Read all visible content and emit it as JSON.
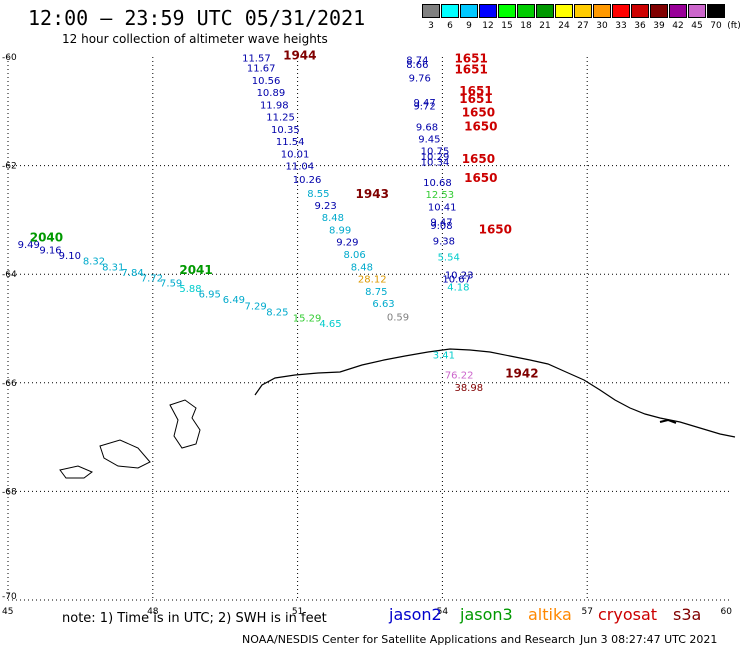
{
  "header": {
    "title": "12:00 – 23:59 UTC 05/31/2021",
    "subtitle": "12 hour collection of altimeter wave heights"
  },
  "legend": {
    "unit": "(ft)",
    "items": [
      {
        "label": "3",
        "color": "#808080"
      },
      {
        "label": "6",
        "color": "#00ffff"
      },
      {
        "label": "9",
        "color": "#00c8ff"
      },
      {
        "label": "12",
        "color": "#0000ff"
      },
      {
        "label": "15",
        "color": "#00ff00"
      },
      {
        "label": "18",
        "color": "#00cc00"
      },
      {
        "label": "21",
        "color": "#009900"
      },
      {
        "label": "24",
        "color": "#ffff00"
      },
      {
        "label": "27",
        "color": "#ffcc00"
      },
      {
        "label": "30",
        "color": "#ff9900"
      },
      {
        "label": "33",
        "color": "#ff0000"
      },
      {
        "label": "36",
        "color": "#cc0000"
      },
      {
        "label": "39",
        "color": "#800000"
      },
      {
        "label": "42",
        "color": "#990099"
      },
      {
        "label": "45",
        "color": "#cc66cc"
      },
      {
        "label": "70",
        "color": "#000000"
      }
    ]
  },
  "axes": {
    "lon_ticks": [
      "45",
      "48",
      "51",
      "54",
      "57",
      "60"
    ],
    "lat_ticks": [
      "-60",
      "-62",
      "-64",
      "-66",
      "-68",
      "-70"
    ]
  },
  "footer": {
    "note": "note:  1) Time is in UTC;  2) SWH is in feet",
    "satellites": [
      {
        "name": "jason2",
        "color": "#0000cc"
      },
      {
        "name": "jason3",
        "color": "#009900"
      },
      {
        "name": "altika",
        "color": "#ff8800"
      },
      {
        "name": "cryosat",
        "color": "#cc0000"
      },
      {
        "name": "s3a",
        "color": "#800000"
      }
    ],
    "credit": "NOAA/NESDIS Center for Satellite Applications and Research",
    "timestamp": "Jun  3 08:27:47 UTC 2021"
  },
  "track_labels": [
    {
      "text": "1944",
      "lon": 50.7,
      "lat": -60.05,
      "color": "#800000"
    },
    {
      "text": "1943",
      "lon": 52.2,
      "lat": -62.6,
      "color": "#800000"
    },
    {
      "text": "1942",
      "lon": 55.3,
      "lat": -65.9,
      "color": "#800000"
    },
    {
      "text": "2040",
      "lon": 45.45,
      "lat": -63.4,
      "color": "#009900"
    },
    {
      "text": "2041",
      "lon": 48.55,
      "lat": -64.0,
      "color": "#009900"
    },
    {
      "text": "1651",
      "lon": 54.25,
      "lat": -60.1,
      "color": "#cc0000"
    },
    {
      "text": "1651",
      "lon": 54.25,
      "lat": -60.3,
      "color": "#cc0000"
    },
    {
      "text": "1651",
      "lon": 54.35,
      "lat": -60.7,
      "color": "#cc0000"
    },
    {
      "text": "1651",
      "lon": 54.35,
      "lat": -60.85,
      "color": "#cc0000"
    },
    {
      "text": "1650",
      "lon": 54.4,
      "lat": -61.1,
      "color": "#cc0000"
    },
    {
      "text": "1650",
      "lon": 54.45,
      "lat": -61.35,
      "color": "#cc0000"
    },
    {
      "text": "1650",
      "lon": 54.4,
      "lat": -61.95,
      "color": "#cc0000"
    },
    {
      "text": "1650",
      "lon": 54.45,
      "lat": -62.3,
      "color": "#cc0000"
    },
    {
      "text": "1650",
      "lon": 54.75,
      "lat": -63.25,
      "color": "#cc0000"
    }
  ],
  "swh_points": [
    {
      "value": "11.57",
      "lon": 49.85,
      "lat": -60.08,
      "color": "#0000aa"
    },
    {
      "value": "11.67",
      "lon": 49.95,
      "lat": -60.27,
      "color": "#0000aa"
    },
    {
      "value": "10.56",
      "lon": 50.05,
      "lat": -60.5,
      "color": "#0000aa"
    },
    {
      "value": "10.89",
      "lon": 50.15,
      "lat": -60.72,
      "color": "#0000aa"
    },
    {
      "value": "11.98",
      "lon": 50.22,
      "lat": -60.95,
      "color": "#0000aa"
    },
    {
      "value": "11.25",
      "lon": 50.35,
      "lat": -61.17,
      "color": "#0000aa"
    },
    {
      "value": "10.35",
      "lon": 50.45,
      "lat": -61.4,
      "color": "#0000aa"
    },
    {
      "value": "11.54",
      "lon": 50.55,
      "lat": -61.62,
      "color": "#0000aa"
    },
    {
      "value": "10.01",
      "lon": 50.65,
      "lat": -61.85,
      "color": "#0000aa"
    },
    {
      "value": "11.04",
      "lon": 50.75,
      "lat": -62.07,
      "color": "#0000aa"
    },
    {
      "value": "10.26",
      "lon": 50.9,
      "lat": -62.32,
      "color": "#0000aa"
    },
    {
      "value": "8.55",
      "lon": 51.2,
      "lat": -62.58,
      "color": "#00aacc"
    },
    {
      "value": "9.23",
      "lon": 51.35,
      "lat": -62.8,
      "color": "#0000aa"
    },
    {
      "value": "8.48",
      "lon": 51.5,
      "lat": -63.02,
      "color": "#00aacc"
    },
    {
      "value": "8.99",
      "lon": 51.65,
      "lat": -63.25,
      "color": "#00aacc"
    },
    {
      "value": "9.29",
      "lon": 51.8,
      "lat": -63.47,
      "color": "#0000aa"
    },
    {
      "value": "8.06",
      "lon": 51.95,
      "lat": -63.7,
      "color": "#00aacc"
    },
    {
      "value": "8.48",
      "lon": 52.1,
      "lat": -63.93,
      "color": "#00aacc"
    },
    {
      "value": "28.12",
      "lon": 52.25,
      "lat": -64.15,
      "color": "#dd9900"
    },
    {
      "value": "8.75",
      "lon": 52.4,
      "lat": -64.38,
      "color": "#00aacc"
    },
    {
      "value": "6.63",
      "lon": 52.55,
      "lat": -64.6,
      "color": "#00aacc"
    },
    {
      "value": "0.59",
      "lon": 52.85,
      "lat": -64.85,
      "color": "#808080"
    },
    {
      "value": "8.74",
      "lon": 53.25,
      "lat": -60.12,
      "color": "#0000aa"
    },
    {
      "value": "8.66",
      "lon": 53.25,
      "lat": -60.2,
      "color": "#0000aa"
    },
    {
      "value": "9.76",
      "lon": 53.3,
      "lat": -60.45,
      "color": "#0000aa"
    },
    {
      "value": "9.47",
      "lon": 53.4,
      "lat": -60.9,
      "color": "#0000aa"
    },
    {
      "value": "9.72",
      "lon": 53.4,
      "lat": -60.97,
      "color": "#0000aa"
    },
    {
      "value": "9.68",
      "lon": 53.45,
      "lat": -61.35,
      "color": "#0000aa"
    },
    {
      "value": "9.45",
      "lon": 53.5,
      "lat": -61.57,
      "color": "#0000aa"
    },
    {
      "value": "10.75",
      "lon": 53.55,
      "lat": -61.8,
      "color": "#0000aa"
    },
    {
      "value": "10.29",
      "lon": 53.55,
      "lat": -61.9,
      "color": "#0000aa"
    },
    {
      "value": "10.34",
      "lon": 53.55,
      "lat": -62.0,
      "color": "#0000aa"
    },
    {
      "value": "10.68",
      "lon": 53.6,
      "lat": -62.38,
      "color": "#0000aa"
    },
    {
      "value": "12.53",
      "lon": 53.65,
      "lat": -62.6,
      "color": "#33cc33"
    },
    {
      "value": "10.41",
      "lon": 53.7,
      "lat": -62.83,
      "color": "#0000aa"
    },
    {
      "value": "9.47",
      "lon": 53.75,
      "lat": -63.1,
      "color": "#0000aa"
    },
    {
      "value": "9.08",
      "lon": 53.75,
      "lat": -63.17,
      "color": "#0000aa"
    },
    {
      "value": "9.38",
      "lon": 53.8,
      "lat": -63.45,
      "color": "#0000aa"
    },
    {
      "value": "5.54",
      "lon": 53.9,
      "lat": -63.75,
      "color": "#00cccc"
    },
    {
      "value": "10.23",
      "lon": 54.05,
      "lat": -64.08,
      "color": "#0000aa"
    },
    {
      "value": "10.67",
      "lon": 54.0,
      "lat": -64.15,
      "color": "#0000aa"
    },
    {
      "value": "4.18",
      "lon": 54.1,
      "lat": -64.3,
      "color": "#00cccc"
    },
    {
      "value": "3.41",
      "lon": 53.8,
      "lat": -65.55,
      "color": "#00cccc"
    },
    {
      "value": "76.22",
      "lon": 54.05,
      "lat": -65.92,
      "color": "#cc66cc"
    },
    {
      "value": "38.98",
      "lon": 54.25,
      "lat": -66.15,
      "color": "#800000"
    },
    {
      "value": "9.49",
      "lon": 45.2,
      "lat": -63.52,
      "color": "#0000aa"
    },
    {
      "value": "9.16",
      "lon": 45.65,
      "lat": -63.62,
      "color": "#0000aa"
    },
    {
      "value": "9.10",
      "lon": 46.05,
      "lat": -63.72,
      "color": "#0000aa"
    },
    {
      "value": "8.32",
      "lon": 46.55,
      "lat": -63.82,
      "color": "#00aacc"
    },
    {
      "value": "8.31",
      "lon": 46.95,
      "lat": -63.93,
      "color": "#00aacc"
    },
    {
      "value": "7.84",
      "lon": 47.35,
      "lat": -64.03,
      "color": "#00aacc"
    },
    {
      "value": "7.72",
      "lon": 47.75,
      "lat": -64.13,
      "color": "#00aacc"
    },
    {
      "value": "7.59",
      "lon": 48.15,
      "lat": -64.23,
      "color": "#00aacc"
    },
    {
      "value": "5.88",
      "lon": 48.55,
      "lat": -64.33,
      "color": "#00cccc"
    },
    {
      "value": "6.95",
      "lon": 48.95,
      "lat": -64.43,
      "color": "#00aacc"
    },
    {
      "value": "6.49",
      "lon": 49.45,
      "lat": -64.53,
      "color": "#00aacc"
    },
    {
      "value": "7.29",
      "lon": 49.9,
      "lat": -64.65,
      "color": "#00aacc"
    },
    {
      "value": "8.25",
      "lon": 50.35,
      "lat": -64.76,
      "color": "#00aacc"
    },
    {
      "value": "15.29",
      "lon": 50.9,
      "lat": -64.87,
      "color": "#33cc33"
    },
    {
      "value": "4.65",
      "lon": 51.45,
      "lat": -64.97,
      "color": "#00cccc"
    }
  ]
}
